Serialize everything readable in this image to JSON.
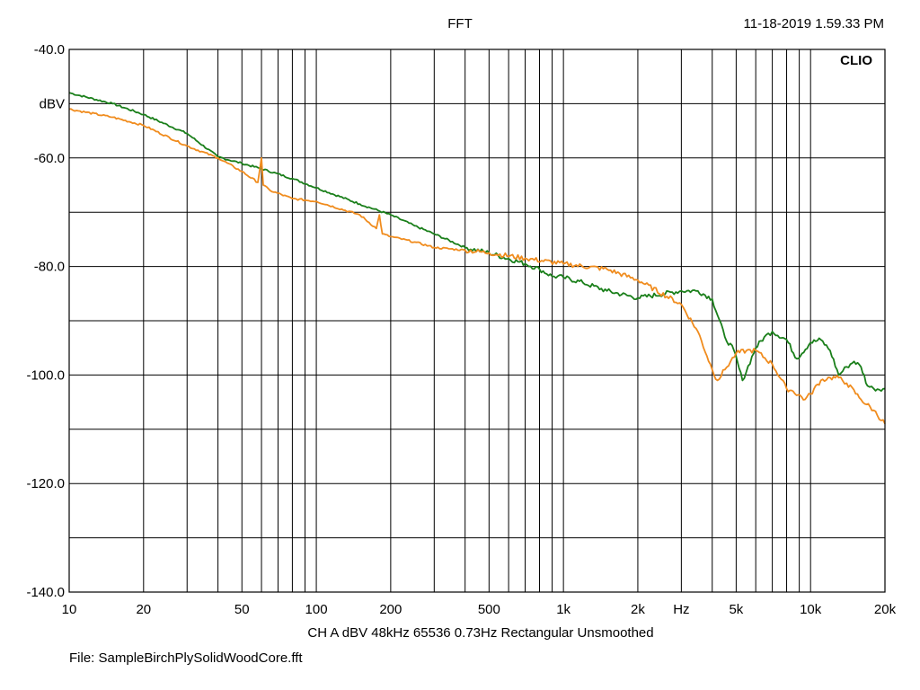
{
  "header": {
    "title": "FFT",
    "datetime": "11-18-2019 1.59.33 PM"
  },
  "footer": {
    "settings": "CH A   dBV   48kHz   65536   0.73Hz   Rectangular   Unsmoothed",
    "file": "File: SampleBirchPlySolidWoodCore.fft"
  },
  "colors": {
    "background": "#ffffff",
    "grid": "#000000",
    "series_green": "#1a7f1a",
    "series_orange": "#f08c1e"
  },
  "chart_data": {
    "type": "line",
    "title": "FFT",
    "brand": "CLIO",
    "xscale": "log",
    "xlim": [
      10,
      20000
    ],
    "ylim": [
      -140,
      -40
    ],
    "ylabel": "dBV",
    "xlabel": "Hz",
    "grid": true,
    "x_ticks": [
      "10",
      "20",
      "50",
      "100",
      "200",
      "500",
      "1k",
      "2k",
      "5k",
      "10k",
      "20k"
    ],
    "x_tick_values": [
      10,
      20,
      50,
      100,
      200,
      500,
      1000,
      2000,
      5000,
      10000,
      20000
    ],
    "y_ticks": [
      "-40.0",
      "-60.0",
      "-80.0",
      "-100.0",
      "-120.0",
      "-140.0"
    ],
    "y_tick_values": [
      -40,
      -60,
      -80,
      -100,
      -120,
      -140
    ],
    "series": [
      {
        "color": "#1a7f1a",
        "points": [
          [
            10,
            -48
          ],
          [
            15,
            -50
          ],
          [
            20,
            -52
          ],
          [
            30,
            -55.5
          ],
          [
            40,
            -59.8
          ],
          [
            50,
            -61
          ],
          [
            60,
            -62
          ],
          [
            80,
            -63.8
          ],
          [
            100,
            -65.5
          ],
          [
            150,
            -68.5
          ],
          [
            200,
            -70.5
          ],
          [
            250,
            -72.5
          ],
          [
            300,
            -74
          ],
          [
            400,
            -76.5
          ],
          [
            500,
            -77.5
          ],
          [
            700,
            -79.5
          ],
          [
            800,
            -80.5
          ],
          [
            900,
            -81.8
          ],
          [
            1000,
            -82
          ],
          [
            1200,
            -83
          ],
          [
            1500,
            -84.5
          ],
          [
            2000,
            -85.8
          ],
          [
            3000,
            -84.5
          ],
          [
            3500,
            -84.5
          ],
          [
            4000,
            -86
          ],
          [
            4500,
            -93
          ],
          [
            4900,
            -95.5
          ],
          [
            5300,
            -101
          ],
          [
            6000,
            -95
          ],
          [
            6500,
            -93
          ],
          [
            7000,
            -92
          ],
          [
            8000,
            -93.5
          ],
          [
            8800,
            -97
          ],
          [
            10000,
            -94
          ],
          [
            11000,
            -93.5
          ],
          [
            12000,
            -95.5
          ],
          [
            13000,
            -100
          ],
          [
            14000,
            -98.5
          ],
          [
            15000,
            -97.5
          ],
          [
            16000,
            -98.5
          ],
          [
            17000,
            -102
          ],
          [
            18000,
            -102.5
          ],
          [
            20000,
            -102.5
          ]
        ]
      },
      {
        "color": "#f08c1e",
        "points": [
          [
            10,
            -51
          ],
          [
            15,
            -52.5
          ],
          [
            20,
            -54
          ],
          [
            30,
            -57.8
          ],
          [
            40,
            -60
          ],
          [
            50,
            -62.5
          ],
          [
            58,
            -64.5
          ],
          [
            60,
            -60
          ],
          [
            61,
            -65
          ],
          [
            65,
            -66
          ],
          [
            80,
            -67.5
          ],
          [
            100,
            -68
          ],
          [
            150,
            -70.5
          ],
          [
            175,
            -73
          ],
          [
            180,
            -70.5
          ],
          [
            185,
            -74
          ],
          [
            200,
            -74.5
          ],
          [
            250,
            -75.5
          ],
          [
            300,
            -76.5
          ],
          [
            400,
            -77
          ],
          [
            500,
            -77.5
          ],
          [
            700,
            -78.5
          ],
          [
            1000,
            -79.5
          ],
          [
            1500,
            -80.5
          ],
          [
            2000,
            -82.5
          ],
          [
            3000,
            -87
          ],
          [
            3500,
            -92
          ],
          [
            4000,
            -99
          ],
          [
            4200,
            -101
          ],
          [
            4500,
            -99
          ],
          [
            5000,
            -96
          ],
          [
            5500,
            -95.5
          ],
          [
            6000,
            -95.5
          ],
          [
            7000,
            -98
          ],
          [
            8000,
            -102.5
          ],
          [
            8500,
            -103
          ],
          [
            9500,
            -104.5
          ],
          [
            10000,
            -103.5
          ],
          [
            11000,
            -101
          ],
          [
            12000,
            -100.5
          ],
          [
            13000,
            -100.5
          ],
          [
            14000,
            -101.5
          ],
          [
            16000,
            -104.5
          ],
          [
            18000,
            -106.5
          ],
          [
            20000,
            -109
          ]
        ]
      }
    ]
  }
}
